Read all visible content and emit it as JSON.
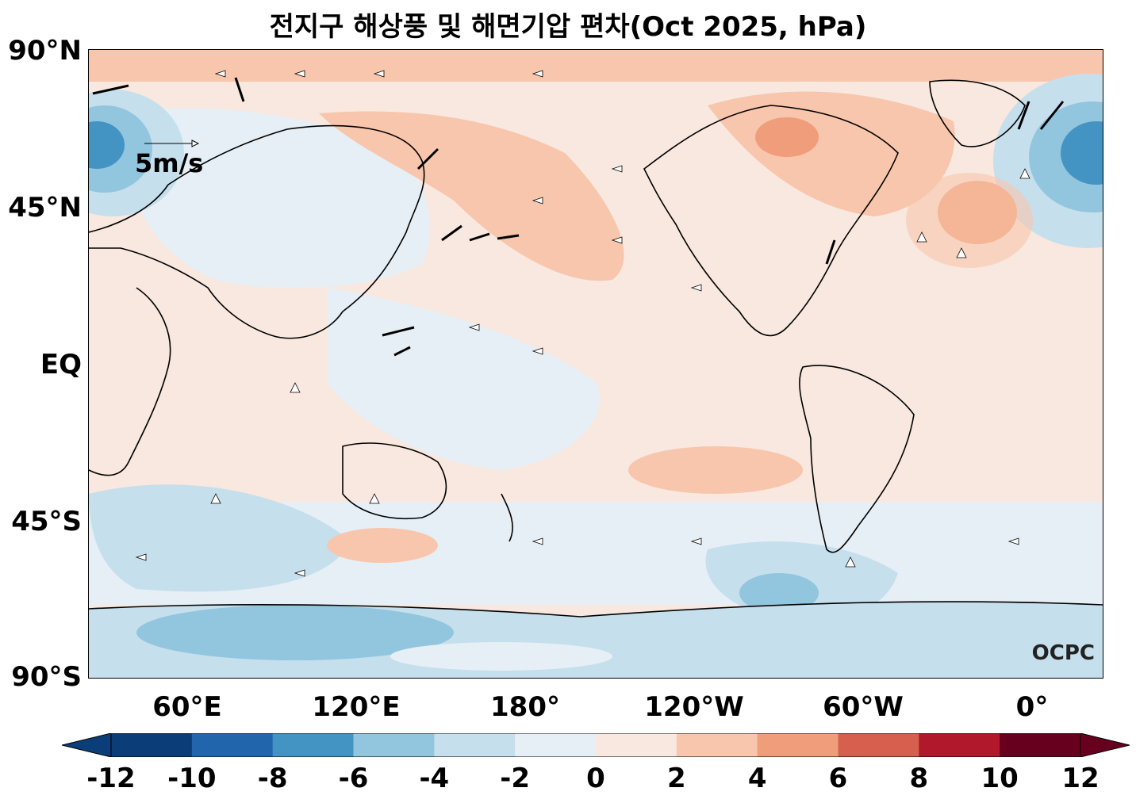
{
  "title": "전지구 해상풍 및 해면기압 편차(Oct 2025, hPa)",
  "map": {
    "lat_labels": [
      "90°N",
      "45°N",
      "EQ",
      "45°S",
      "90°S"
    ],
    "lon_labels": [
      "60°E",
      "120°E",
      "180°",
      "120°W",
      "60°W",
      "0°"
    ],
    "wind_scale_label": "5m/s",
    "brand": "OCPC"
  },
  "colorbar": {
    "labels": [
      "-12",
      "-10",
      "-8",
      "-6",
      "-4",
      "-2",
      "0",
      "2",
      "4",
      "6",
      "8",
      "10",
      "12"
    ],
    "colors": [
      "#0b3d78",
      "#2166ac",
      "#4393c3",
      "#92c5de",
      "#c6dfed",
      "#e6eff5",
      "#f8e8df",
      "#f8c6ac",
      "#ef9d7a",
      "#d6604d",
      "#b2182b",
      "#67001f"
    ],
    "extend_low_color": "#0b3d78",
    "extend_high_color": "#67001f"
  }
}
